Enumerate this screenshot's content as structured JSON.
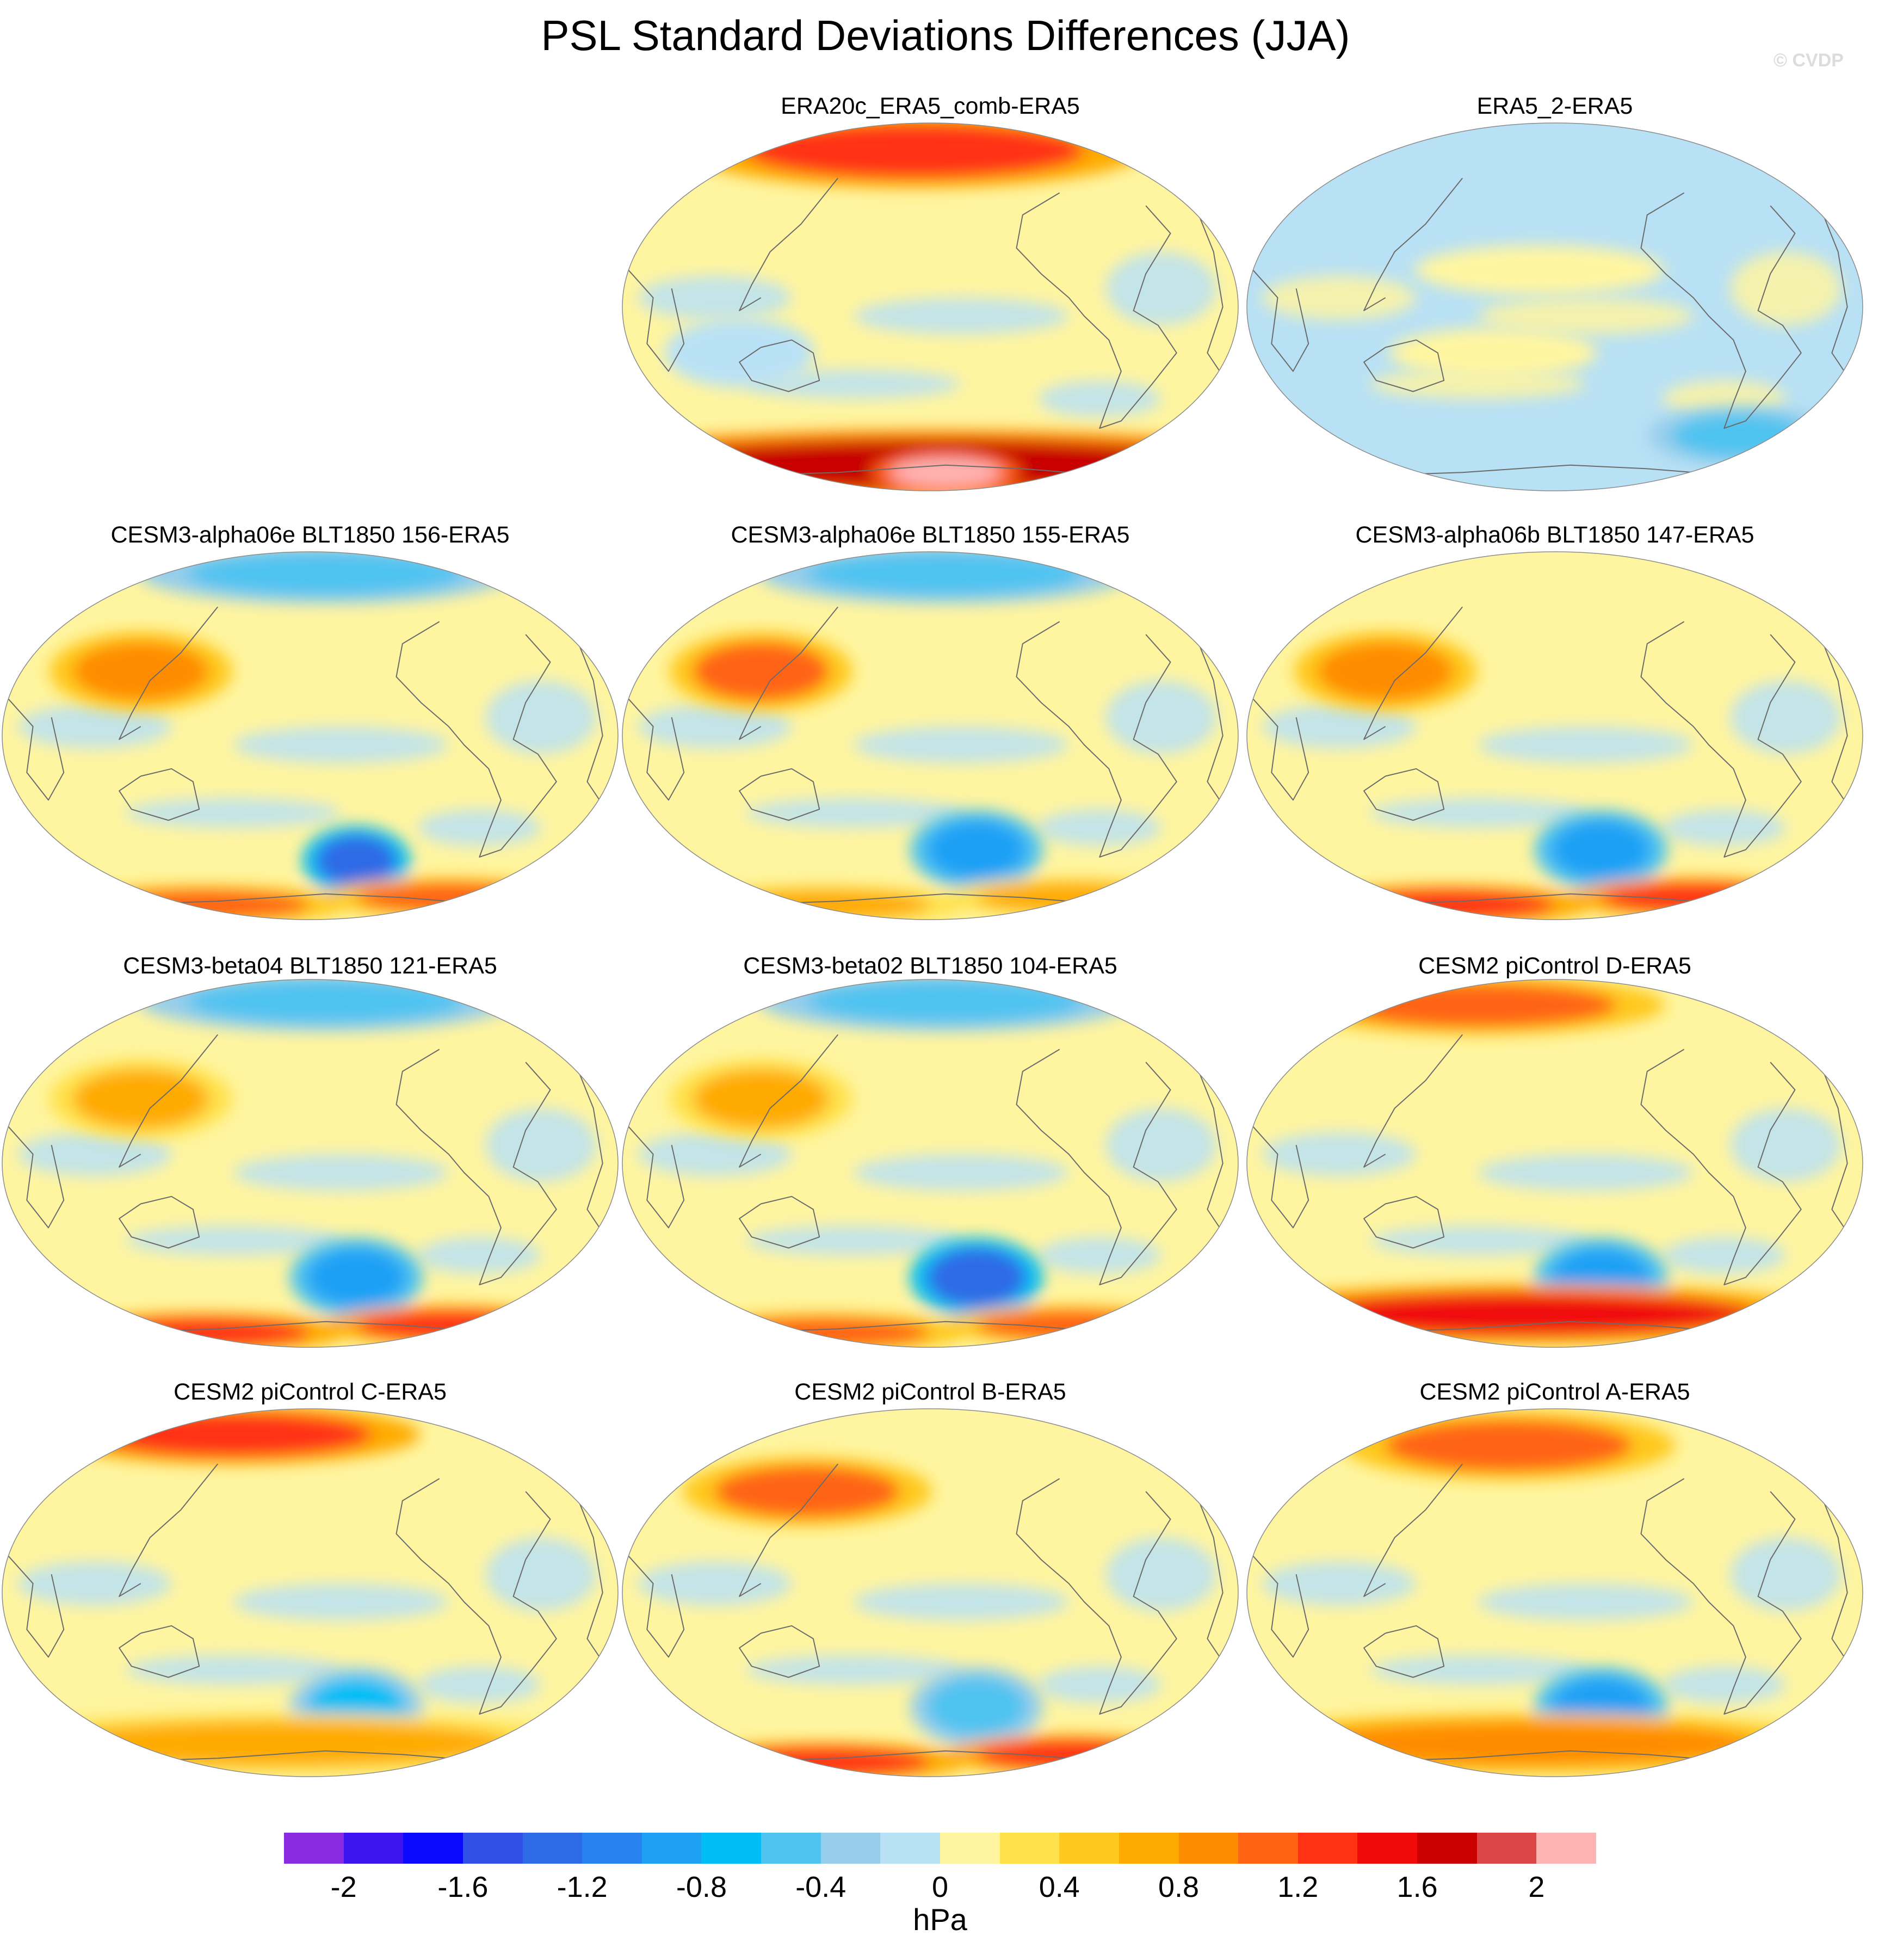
{
  "title": "PSL Standard Deviations Differences (JJA)",
  "watermark": "© CVDP",
  "colorbar": {
    "units": "hPa",
    "tick_labels": [
      "-2",
      "-1.6",
      "-1.2",
      "-0.8",
      "-0.4",
      "0",
      "0.4",
      "0.8",
      "1.2",
      "1.6",
      "2"
    ],
    "levels": [
      -2.2,
      -2.0,
      -1.8,
      -1.6,
      -1.4,
      -1.2,
      -1.0,
      -0.8,
      -0.6,
      -0.4,
      -0.2,
      0.0,
      0.2,
      0.4,
      0.6,
      0.8,
      1.0,
      1.2,
      1.4,
      1.6,
      1.8,
      2.0,
      2.2
    ],
    "colors": [
      "#8a2be2",
      "#3c14f0",
      "#0a0aff",
      "#3250e6",
      "#2d6ae6",
      "#2882f0",
      "#1ea0f5",
      "#00bef5",
      "#50c3f0",
      "#96cdeb",
      "#b9e1f5",
      "#fff5a0",
      "#ffe14b",
      "#ffc81e",
      "#ffaa00",
      "#ff8c00",
      "#ff6414",
      "#ff3214",
      "#f00a0a",
      "#c80000",
      "#dc4646",
      "#ffb4b4"
    ]
  },
  "chart_data": [
    {
      "type": "heatmap",
      "title": "ERA20c_ERA5_comb-ERA5",
      "units": "hPa",
      "projection": "Robinson (global, Pacific-centered)",
      "features": [
        {
          "region": "Southern Ocean / Antarctic margin",
          "value": 1.6
        },
        {
          "region": "Antarctica interior",
          "value": 2.2
        },
        {
          "region": "Arctic / North Pacific high latitudes",
          "value": 1.2
        },
        {
          "region": "Tropics and mid-latitudes",
          "value": 0.1
        },
        {
          "region": "Indian Ocean / Australia",
          "value": -0.1
        }
      ]
    },
    {
      "type": "heatmap",
      "title": "ERA5_2-ERA5",
      "units": "hPa",
      "projection": "Robinson (global, Pacific-centered)",
      "features": [
        {
          "region": "Most of globe",
          "value": -0.1
        },
        {
          "region": "Central Pacific",
          "value": 0.1
        },
        {
          "region": "South Atlantic sector",
          "value": -0.5
        }
      ]
    },
    {
      "type": "heatmap",
      "title": "CESM3-alpha06e BLT1850 156-ERA5",
      "units": "hPa",
      "projection": "Robinson (global, Pacific-centered)",
      "features": [
        {
          "region": "NW Pacific",
          "value": 0.9
        },
        {
          "region": "Arctic",
          "value": -0.5
        },
        {
          "region": "South Pacific (Amundsen Sea)",
          "value": -1.4
        },
        {
          "region": "Antarctic margin",
          "value": 1.0
        }
      ]
    },
    {
      "type": "heatmap",
      "title": "CESM3-alpha06e BLT1850 155-ERA5",
      "units": "hPa",
      "projection": "Robinson (global, Pacific-centered)",
      "features": [
        {
          "region": "NW Pacific",
          "value": 1.0
        },
        {
          "region": "Arctic",
          "value": -0.5
        },
        {
          "region": "South Pacific",
          "value": -1.0
        },
        {
          "region": "Antarctic margin",
          "value": 0.6
        }
      ]
    },
    {
      "type": "heatmap",
      "title": "CESM3-alpha06b BLT1850 147-ERA5",
      "units": "hPa",
      "projection": "Robinson (global, Pacific-centered)",
      "features": [
        {
          "region": "NW Pacific",
          "value": 0.8
        },
        {
          "region": "South Pacific",
          "value": -1.0
        },
        {
          "region": "Antarctic margin",
          "value": 1.2
        }
      ]
    },
    {
      "type": "heatmap",
      "title": "CESM3-beta04 BLT1850 121-ERA5",
      "units": "hPa",
      "projection": "Robinson (global, Pacific-centered)",
      "features": [
        {
          "region": "NW Pacific",
          "value": 0.7
        },
        {
          "region": "Arctic",
          "value": -0.5
        },
        {
          "region": "South Pacific",
          "value": -1.0
        },
        {
          "region": "Antarctic margin",
          "value": 1.2
        }
      ]
    },
    {
      "type": "heatmap",
      "title": "CESM3-beta02 BLT1850 104-ERA5",
      "units": "hPa",
      "projection": "Robinson (global, Pacific-centered)",
      "features": [
        {
          "region": "NW Pacific",
          "value": 0.6
        },
        {
          "region": "Arctic",
          "value": -0.5
        },
        {
          "region": "South Pacific",
          "value": -1.3
        },
        {
          "region": "Antarctic margin",
          "value": 1.0
        }
      ]
    },
    {
      "type": "heatmap",
      "title": "CESM2 piControl D-ERA5",
      "units": "hPa",
      "projection": "Robinson (global, Pacific-centered)",
      "features": [
        {
          "region": "Arctic / North Pacific",
          "value": 1.0
        },
        {
          "region": "South Pacific",
          "value": -1.0
        },
        {
          "region": "Southern Ocean",
          "value": 1.4
        }
      ]
    },
    {
      "type": "heatmap",
      "title": "CESM2 piControl C-ERA5",
      "units": "hPa",
      "projection": "Robinson (global, Pacific-centered)",
      "features": [
        {
          "region": "Arctic / North Pacific",
          "value": 1.2
        },
        {
          "region": "South Pacific",
          "value": -0.8
        },
        {
          "region": "Southern Ocean",
          "value": 0.6
        }
      ]
    },
    {
      "type": "heatmap",
      "title": "CESM2 piControl B-ERA5",
      "units": "hPa",
      "projection": "Robinson (global, Pacific-centered)",
      "features": [
        {
          "region": "North Pacific",
          "value": 1.0
        },
        {
          "region": "South Pacific",
          "value": -0.6
        },
        {
          "region": "Antarctic margin",
          "value": 1.2
        }
      ]
    },
    {
      "type": "heatmap",
      "title": "CESM2 piControl A-ERA5",
      "units": "hPa",
      "projection": "Robinson (global, Pacific-centered)",
      "features": [
        {
          "region": "North Pacific / Arctic",
          "value": 1.0
        },
        {
          "region": "South Pacific",
          "value": -1.0
        },
        {
          "region": "Southern Ocean",
          "value": 0.8
        }
      ]
    }
  ]
}
